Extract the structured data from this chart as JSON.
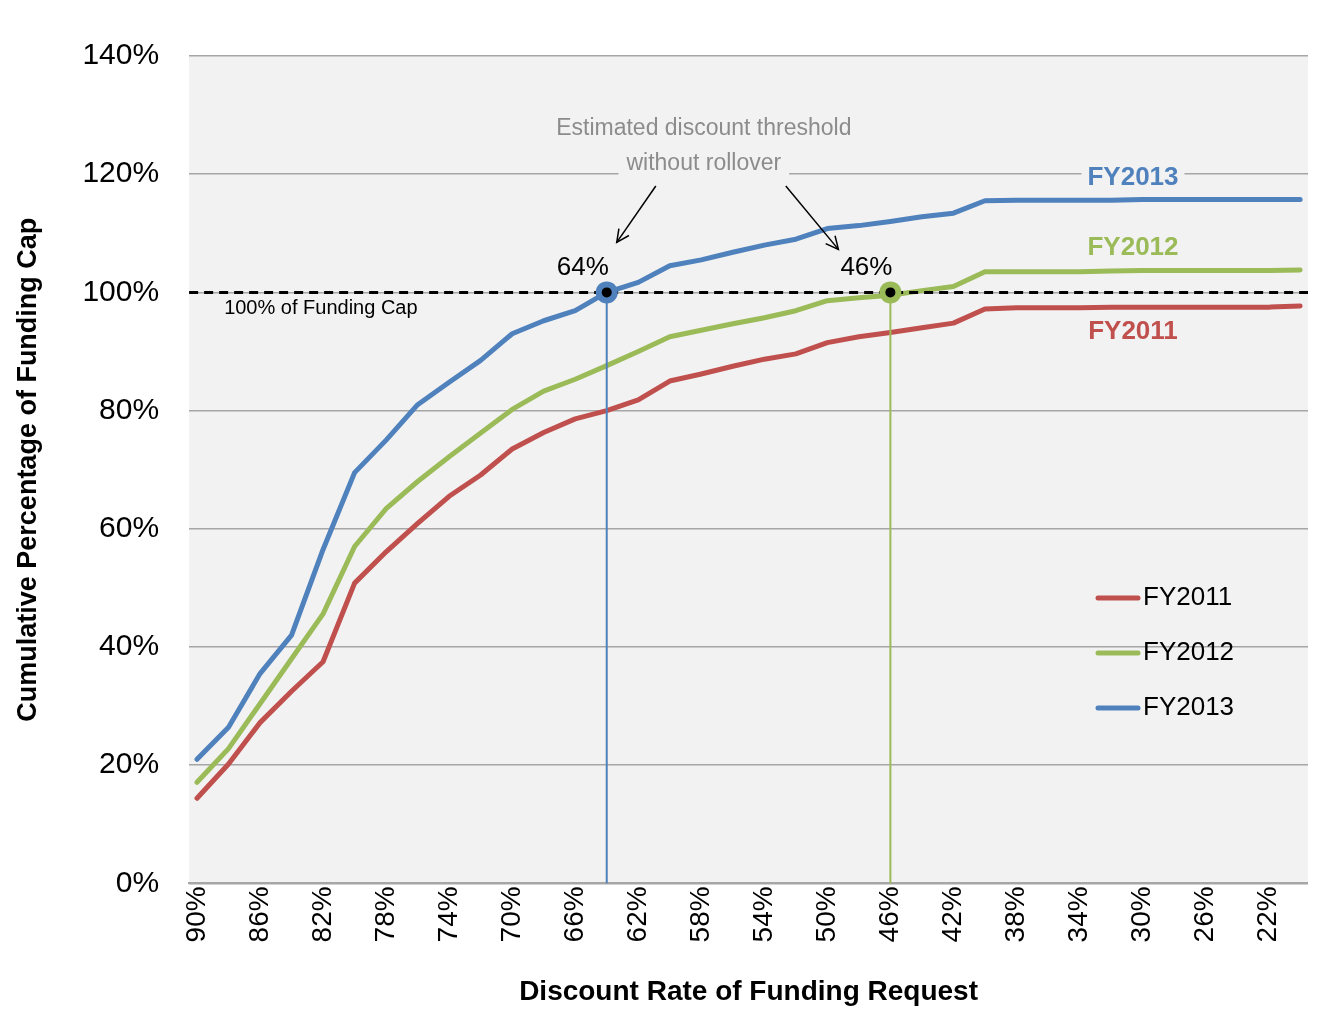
{
  "chart_data": {
    "type": "line",
    "xlabel": "Discount Rate of Funding Request",
    "ylabel": "Cumulative Percentage of Funding Cap",
    "x": [
      90,
      88,
      86,
      84,
      82,
      80,
      78,
      76,
      74,
      72,
      70,
      68,
      66,
      64,
      62,
      60,
      58,
      56,
      54,
      52,
      50,
      48,
      46,
      44,
      42,
      40,
      38,
      36,
      34,
      32,
      30,
      28,
      26,
      24,
      22,
      20
    ],
    "xlim": [
      90.5,
      19.5
    ],
    "xticks": [
      {
        "value": 90,
        "label": "90%"
      },
      {
        "value": 86,
        "label": "86%"
      },
      {
        "value": 82,
        "label": "82%"
      },
      {
        "value": 78,
        "label": "78%"
      },
      {
        "value": 74,
        "label": "74%"
      },
      {
        "value": 70,
        "label": "70%"
      },
      {
        "value": 66,
        "label": "66%"
      },
      {
        "value": 62,
        "label": "62%"
      },
      {
        "value": 58,
        "label": "58%"
      },
      {
        "value": 54,
        "label": "54%"
      },
      {
        "value": 50,
        "label": "50%"
      },
      {
        "value": 46,
        "label": "46%"
      },
      {
        "value": 42,
        "label": "42%"
      },
      {
        "value": 38,
        "label": "38%"
      },
      {
        "value": 34,
        "label": "34%"
      },
      {
        "value": 30,
        "label": "30%"
      },
      {
        "value": 26,
        "label": "26%"
      },
      {
        "value": 22,
        "label": "22%"
      }
    ],
    "ylim": [
      0,
      140
    ],
    "yticks": [
      {
        "value": 0,
        "label": "0%"
      },
      {
        "value": 20,
        "label": "20%"
      },
      {
        "value": 40,
        "label": "40%"
      },
      {
        "value": 60,
        "label": "60%"
      },
      {
        "value": 80,
        "label": "80%"
      },
      {
        "value": 100,
        "label": "100%"
      },
      {
        "value": 120,
        "label": "120%"
      },
      {
        "value": 140,
        "label": "140%"
      }
    ],
    "grid": "y",
    "legend": "right",
    "marker": "none",
    "line_style": "solid",
    "series": [
      {
        "name": "FY2011",
        "color": "#c0504d",
        "values": [
          14.4,
          20.2,
          27.2,
          32.5,
          37.5,
          50.8,
          56.1,
          60.9,
          65.5,
          69.1,
          73.5,
          76.3,
          78.6,
          80.0,
          81.8,
          85.0,
          86.2,
          87.5,
          88.7,
          89.6,
          91.5,
          92.5,
          93.2,
          94.0,
          94.8,
          97.2,
          97.4,
          97.4,
          97.4,
          97.5,
          97.5,
          97.5,
          97.5,
          97.5,
          97.5,
          97.7
        ]
      },
      {
        "name": "FY2012",
        "color": "#9bbb59",
        "values": [
          17.1,
          22.8,
          30.4,
          38.0,
          45.6,
          57.0,
          63.4,
          68.0,
          72.2,
          76.2,
          80.2,
          83.3,
          85.3,
          87.6,
          90.0,
          92.5,
          93.6,
          94.7,
          95.7,
          96.9,
          98.6,
          99.1,
          99.5,
          100.3,
          101.0,
          103.5,
          103.5,
          103.5,
          103.5,
          103.6,
          103.7,
          103.7,
          103.7,
          103.7,
          103.7,
          103.8
        ]
      },
      {
        "name": "FY2013",
        "color": "#4f81bd",
        "values": [
          21.0,
          26.4,
          35.5,
          42.0,
          56.5,
          69.5,
          75.0,
          81.0,
          84.8,
          88.5,
          93.0,
          95.2,
          96.9,
          100.0,
          101.7,
          104.5,
          105.5,
          106.8,
          108.0,
          109.0,
          110.8,
          111.3,
          112.0,
          112.8,
          113.4,
          115.5,
          115.6,
          115.6,
          115.6,
          115.6,
          115.7,
          115.7,
          115.7,
          115.7,
          115.7,
          115.7
        ]
      }
    ],
    "ref_lines": [
      {
        "axis": "y",
        "value": 100,
        "label": "100% of Funding Cap",
        "color": "#000000",
        "line_style": "dashed"
      },
      {
        "axis": "x",
        "value": 64,
        "label": "64%",
        "color": "#4f81bd"
      },
      {
        "axis": "x",
        "value": 46,
        "label": "46%",
        "color": "#9bbb59"
      }
    ],
    "annotations": [
      "Estimated discount threshold without rollover"
    ]
  }
}
